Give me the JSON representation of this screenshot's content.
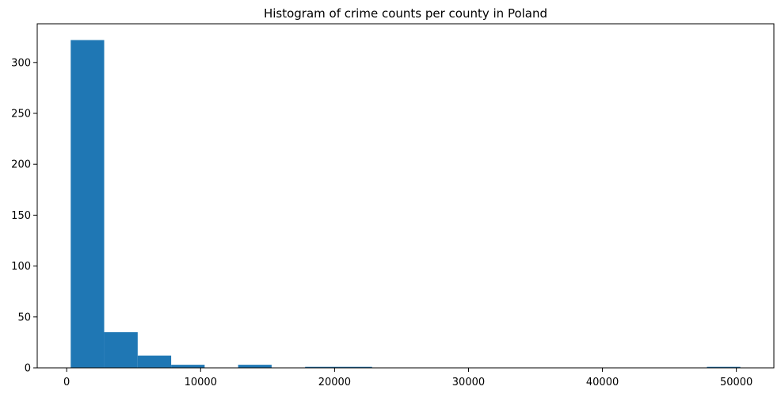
{
  "chart_data": {
    "type": "histogram",
    "title": "Histogram of crime counts per county in Poland",
    "xlabel": "",
    "ylabel": "",
    "xlim": [
      -2200,
      52800
    ],
    "ylim": [
      0,
      338
    ],
    "bin_edges": [
      300,
      2800,
      5300,
      7800,
      10300,
      12800,
      15300,
      17800,
      20300,
      22800,
      25300,
      27800,
      30300,
      32800,
      35300,
      37800,
      40300,
      42800,
      45300,
      47800,
      50300
    ],
    "counts": [
      322,
      35,
      12,
      3,
      0,
      3,
      0,
      1,
      1,
      0,
      0,
      0,
      0,
      0,
      0,
      0,
      0,
      0,
      0,
      1
    ],
    "x_ticks": [
      0,
      10000,
      20000,
      30000,
      40000,
      50000
    ],
    "x_tick_labels": [
      "0",
      "10000",
      "20000",
      "30000",
      "40000",
      "50000"
    ],
    "y_ticks": [
      0,
      50,
      100,
      150,
      200,
      250,
      300
    ],
    "y_tick_labels": [
      "0",
      "50",
      "100",
      "150",
      "200",
      "250",
      "300"
    ],
    "bar_color": "#1f77b4",
    "grid": false,
    "legend": "none"
  }
}
